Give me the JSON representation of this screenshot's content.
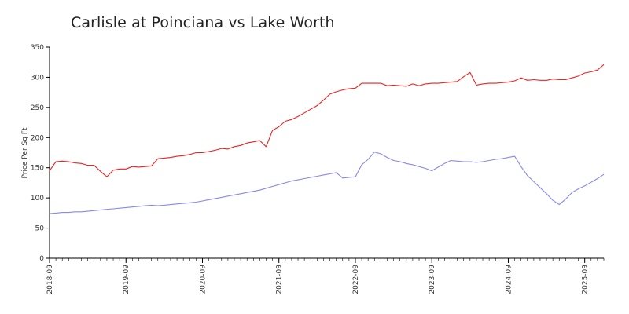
{
  "chart_data": {
    "type": "line",
    "title": "Carlisle at Poinciana vs Lake Worth",
    "xlabel": "",
    "ylabel": "Price Per Sq Ft",
    "ylim": [
      0,
      350
    ],
    "yticks": [
      0,
      50,
      100,
      150,
      200,
      250,
      300,
      350
    ],
    "xlim": [
      "2018-09",
      "2025-12"
    ],
    "xticks": [
      "2018-09",
      "2019-09",
      "2020-09",
      "2021-09",
      "2022-09",
      "2023-09",
      "2024-09",
      "2025-09"
    ],
    "grid": false,
    "legend": "none",
    "series": [
      {
        "color": "#ee2222",
        "points": [
          [
            "2018-09",
            145
          ],
          [
            "2018-10",
            160
          ],
          [
            "2018-11",
            161
          ],
          [
            "2018-12",
            160
          ],
          [
            "2019-01",
            158
          ],
          [
            "2019-02",
            157
          ],
          [
            "2019-03",
            154
          ],
          [
            "2019-04",
            154
          ],
          [
            "2019-05",
            144
          ],
          [
            "2019-06",
            135
          ],
          [
            "2019-07",
            146
          ],
          [
            "2019-08",
            148
          ],
          [
            "2019-09",
            148
          ],
          [
            "2019-10",
            152
          ],
          [
            "2019-11",
            151
          ],
          [
            "2019-12",
            152
          ],
          [
            "2020-01",
            153
          ],
          [
            "2020-02",
            165
          ],
          [
            "2020-03",
            166
          ],
          [
            "2020-04",
            167
          ],
          [
            "2020-05",
            169
          ],
          [
            "2020-06",
            170
          ],
          [
            "2020-07",
            172
          ],
          [
            "2020-08",
            175
          ],
          [
            "2020-09",
            175
          ],
          [
            "2020-10",
            177
          ],
          [
            "2020-11",
            179
          ],
          [
            "2020-12",
            182
          ],
          [
            "2021-01",
            181
          ],
          [
            "2021-02",
            185
          ],
          [
            "2021-03",
            187
          ],
          [
            "2021-04",
            191
          ],
          [
            "2021-05",
            193
          ],
          [
            "2021-06",
            195
          ],
          [
            "2021-07",
            185
          ],
          [
            "2021-08",
            212
          ],
          [
            "2021-09",
            218
          ],
          [
            "2021-10",
            227
          ],
          [
            "2021-11",
            230
          ],
          [
            "2021-12",
            235
          ],
          [
            "2022-01",
            241
          ],
          [
            "2022-02",
            247
          ],
          [
            "2022-03",
            253
          ],
          [
            "2022-04",
            262
          ],
          [
            "2022-05",
            272
          ],
          [
            "2022-06",
            276
          ],
          [
            "2022-07",
            279
          ],
          [
            "2022-08",
            281
          ],
          [
            "2022-09",
            282
          ],
          [
            "2022-10",
            290
          ],
          [
            "2022-11",
            290
          ],
          [
            "2022-12",
            290
          ],
          [
            "2023-01",
            290
          ],
          [
            "2023-02",
            286
          ],
          [
            "2023-03",
            287
          ],
          [
            "2023-04",
            286
          ],
          [
            "2023-05",
            285
          ],
          [
            "2023-06",
            289
          ],
          [
            "2023-07",
            286
          ],
          [
            "2023-08",
            289
          ],
          [
            "2023-09",
            290
          ],
          [
            "2023-10",
            290
          ],
          [
            "2023-11",
            291
          ],
          [
            "2023-12",
            292
          ],
          [
            "2024-01",
            293
          ],
          [
            "2024-02",
            301
          ],
          [
            "2024-03",
            308
          ],
          [
            "2024-04",
            287
          ],
          [
            "2024-05",
            289
          ],
          [
            "2024-06",
            290
          ],
          [
            "2024-07",
            290
          ],
          [
            "2024-08",
            291
          ],
          [
            "2024-09",
            292
          ],
          [
            "2024-10",
            294
          ],
          [
            "2024-11",
            299
          ],
          [
            "2024-12",
            295
          ],
          [
            "2025-01",
            296
          ],
          [
            "2025-02",
            295
          ],
          [
            "2025-03",
            295
          ],
          [
            "2025-04",
            297
          ],
          [
            "2025-05",
            296
          ],
          [
            "2025-06",
            296
          ],
          [
            "2025-07",
            299
          ],
          [
            "2025-08",
            302
          ],
          [
            "2025-09",
            307
          ],
          [
            "2025-10",
            309
          ],
          [
            "2025-11",
            312
          ],
          [
            "2025-12",
            321
          ]
        ]
      },
      {
        "color": "#8888ee",
        "points": [
          [
            "2018-09",
            74
          ],
          [
            "2018-10",
            75
          ],
          [
            "2018-11",
            76
          ],
          [
            "2018-12",
            76
          ],
          [
            "2019-01",
            77
          ],
          [
            "2019-02",
            77
          ],
          [
            "2019-03",
            78
          ],
          [
            "2019-04",
            79
          ],
          [
            "2019-05",
            80
          ],
          [
            "2019-06",
            81
          ],
          [
            "2019-07",
            82
          ],
          [
            "2019-08",
            83
          ],
          [
            "2019-09",
            84
          ],
          [
            "2019-10",
            85
          ],
          [
            "2019-11",
            86
          ],
          [
            "2019-12",
            87
          ],
          [
            "2020-01",
            88
          ],
          [
            "2020-02",
            87
          ],
          [
            "2020-03",
            88
          ],
          [
            "2020-04",
            89
          ],
          [
            "2020-05",
            90
          ],
          [
            "2020-06",
            91
          ],
          [
            "2020-07",
            92
          ],
          [
            "2020-08",
            93
          ],
          [
            "2020-09",
            95
          ],
          [
            "2020-10",
            97
          ],
          [
            "2020-11",
            99
          ],
          [
            "2020-12",
            101
          ],
          [
            "2021-01",
            103
          ],
          [
            "2021-02",
            105
          ],
          [
            "2021-03",
            107
          ],
          [
            "2021-04",
            109
          ],
          [
            "2021-05",
            111
          ],
          [
            "2021-06",
            113
          ],
          [
            "2021-07",
            116
          ],
          [
            "2021-08",
            119
          ],
          [
            "2021-09",
            122
          ],
          [
            "2021-10",
            125
          ],
          [
            "2021-11",
            128
          ],
          [
            "2021-12",
            130
          ],
          [
            "2022-01",
            132
          ],
          [
            "2022-02",
            134
          ],
          [
            "2022-03",
            136
          ],
          [
            "2022-04",
            138
          ],
          [
            "2022-05",
            140
          ],
          [
            "2022-06",
            142
          ],
          [
            "2022-07",
            133
          ],
          [
            "2022-08",
            134
          ],
          [
            "2022-09",
            135
          ],
          [
            "2022-10",
            155
          ],
          [
            "2022-11",
            164
          ],
          [
            "2022-12",
            176
          ],
          [
            "2023-01",
            173
          ],
          [
            "2023-02",
            167
          ],
          [
            "2023-03",
            162
          ],
          [
            "2023-04",
            160
          ],
          [
            "2023-05",
            157
          ],
          [
            "2023-06",
            155
          ],
          [
            "2023-07",
            152
          ],
          [
            "2023-08",
            149
          ],
          [
            "2023-09",
            145
          ],
          [
            "2023-10",
            151
          ],
          [
            "2023-11",
            157
          ],
          [
            "2023-12",
            162
          ],
          [
            "2024-01",
            161
          ],
          [
            "2024-02",
            160
          ],
          [
            "2024-03",
            160
          ],
          [
            "2024-04",
            159
          ],
          [
            "2024-05",
            160
          ],
          [
            "2024-06",
            162
          ],
          [
            "2024-07",
            164
          ],
          [
            "2024-08",
            165
          ],
          [
            "2024-09",
            167
          ],
          [
            "2024-10",
            169
          ],
          [
            "2024-11",
            152
          ],
          [
            "2024-12",
            137
          ],
          [
            "2025-01",
            127
          ],
          [
            "2025-02",
            117
          ],
          [
            "2025-03",
            107
          ],
          [
            "2025-04",
            96
          ],
          [
            "2025-05",
            89
          ],
          [
            "2025-06",
            98
          ],
          [
            "2025-07",
            109
          ],
          [
            "2025-08",
            115
          ],
          [
            "2025-09",
            120
          ],
          [
            "2025-10",
            126
          ],
          [
            "2025-11",
            132
          ],
          [
            "2025-12",
            139
          ]
        ]
      }
    ]
  }
}
